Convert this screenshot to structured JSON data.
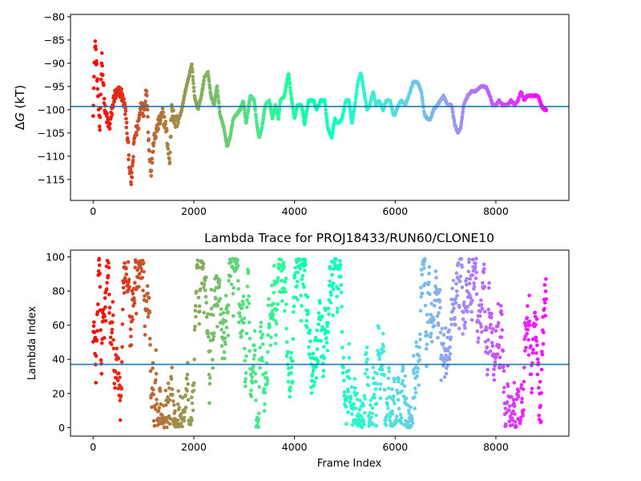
{
  "chart_data": [
    {
      "type": "scatter",
      "title": "",
      "ylabel_prefix": "Δ",
      "ylabel_var": "G",
      "ylabel_suffix": " (kT)",
      "xlabel": "",
      "xlim": [
        -450,
        9450
      ],
      "ylim": [
        -119.5,
        -79.5
      ],
      "xticks": [
        0,
        2000,
        4000,
        6000,
        8000
      ],
      "yticks": [
        -115,
        -110,
        -105,
        -100,
        -95,
        -90,
        -85,
        -80
      ],
      "hline": -99.3,
      "hline_color": "#1f77b4",
      "colormap": "rainbow (red at frame 0 to violet at frame 9000)",
      "series": [
        {
          "frame_range": [
            0,
            9000
          ],
          "trace_knots": [
            [
              0,
              -100
            ],
            [
              40,
              -85
            ],
            [
              80,
              -93
            ],
            [
              130,
              -105
            ],
            [
              170,
              -88
            ],
            [
              230,
              -100
            ],
            [
              320,
              -104
            ],
            [
              420,
              -97
            ],
            [
              550,
              -96
            ],
            [
              640,
              -100
            ],
            [
              720,
              -112
            ],
            [
              760,
              -116
            ],
            [
              820,
              -106
            ],
            [
              900,
              -103
            ],
            [
              960,
              -98
            ],
            [
              1000,
              -101
            ],
            [
              1060,
              -95
            ],
            [
              1100,
              -106
            ],
            [
              1150,
              -114
            ],
            [
              1200,
              -107
            ],
            [
              1300,
              -103
            ],
            [
              1380,
              -101
            ],
            [
              1450,
              -104
            ],
            [
              1520,
              -112
            ],
            [
              1560,
              -99
            ],
            [
              1620,
              -103
            ],
            [
              1700,
              -102
            ],
            [
              1760,
              -100
            ],
            [
              1830,
              -96
            ],
            [
              1900,
              -93
            ],
            [
              1960,
              -90
            ],
            [
              2010,
              -97
            ],
            [
              2080,
              -100
            ],
            [
              2150,
              -97
            ],
            [
              2210,
              -93
            ],
            [
              2280,
              -92
            ],
            [
              2340,
              -97
            ],
            [
              2400,
              -99
            ],
            [
              2460,
              -95
            ],
            [
              2520,
              -101
            ],
            [
              2600,
              -104
            ],
            [
              2660,
              -108
            ],
            [
              2720,
              -106
            ],
            [
              2780,
              -102
            ],
            [
              2850,
              -101
            ],
            [
              2920,
              -100
            ],
            [
              2980,
              -98
            ],
            [
              3040,
              -103
            ],
            [
              3120,
              -97
            ],
            [
              3200,
              -98
            ],
            [
              3260,
              -104
            ],
            [
              3300,
              -106
            ],
            [
              3350,
              -104
            ],
            [
              3420,
              -99
            ],
            [
              3500,
              -98
            ],
            [
              3560,
              -102
            ],
            [
              3620,
              -99
            ],
            [
              3680,
              -102
            ],
            [
              3720,
              -98
            ],
            [
              3800,
              -97
            ],
            [
              3880,
              -92
            ],
            [
              3920,
              -96
            ],
            [
              4000,
              -102
            ],
            [
              4060,
              -99
            ],
            [
              4140,
              -99
            ],
            [
              4200,
              -103
            ],
            [
              4280,
              -98
            ],
            [
              4380,
              -98
            ],
            [
              4440,
              -100
            ],
            [
              4520,
              -98
            ],
            [
              4600,
              -98
            ],
            [
              4660,
              -104
            ],
            [
              4740,
              -106
            ],
            [
              4800,
              -102
            ],
            [
              4860,
              -103
            ],
            [
              4940,
              -102
            ],
            [
              5020,
              -98
            ],
            [
              5080,
              -98
            ],
            [
              5140,
              -103
            ],
            [
              5200,
              -99
            ],
            [
              5260,
              -94
            ],
            [
              5320,
              -92
            ],
            [
              5380,
              -96
            ],
            [
              5440,
              -100
            ],
            [
              5500,
              -99
            ],
            [
              5560,
              -96
            ],
            [
              5620,
              -99
            ],
            [
              5680,
              -98
            ],
            [
              5760,
              -100
            ],
            [
              5820,
              -98
            ],
            [
              5900,
              -98
            ],
            [
              5960,
              -101
            ],
            [
              6000,
              -101
            ],
            [
              6060,
              -99
            ],
            [
              6120,
              -98
            ],
            [
              6200,
              -99
            ],
            [
              6300,
              -96
            ],
            [
              6360,
              -94
            ],
            [
              6440,
              -94
            ],
            [
              6520,
              -96
            ],
            [
              6580,
              -101
            ],
            [
              6640,
              -102
            ],
            [
              6700,
              -102
            ],
            [
              6760,
              -100
            ],
            [
              6840,
              -99
            ],
            [
              6900,
              -98
            ],
            [
              6960,
              -97
            ],
            [
              7040,
              -99
            ],
            [
              7120,
              -99
            ],
            [
              7180,
              -103
            ],
            [
              7240,
              -105
            ],
            [
              7300,
              -104
            ],
            [
              7360,
              -99
            ],
            [
              7440,
              -97
            ],
            [
              7520,
              -96
            ],
            [
              7600,
              -96
            ],
            [
              7700,
              -95
            ],
            [
              7800,
              -95
            ],
            [
              7880,
              -97
            ],
            [
              7940,
              -99
            ],
            [
              8000,
              -99
            ],
            [
              8060,
              -98
            ],
            [
              8140,
              -99
            ],
            [
              8220,
              -99
            ],
            [
              8300,
              -98
            ],
            [
              8380,
              -99
            ],
            [
              8440,
              -98
            ],
            [
              8500,
              -96
            ],
            [
              8560,
              -98
            ],
            [
              8620,
              -97
            ],
            [
              8700,
              -97
            ],
            [
              8780,
              -97
            ],
            [
              8840,
              -97
            ],
            [
              8900,
              -99
            ],
            [
              8960,
              -100
            ],
            [
              9000,
              -100
            ]
          ]
        }
      ]
    },
    {
      "type": "scatter",
      "title": "Lambda Trace for PROJ18433/RUN60/CLONE10",
      "xlabel": "Frame Index",
      "ylabel": "Lambda Index",
      "xlim": [
        -450,
        9450
      ],
      "ylim": [
        -5,
        104
      ],
      "xticks": [
        0,
        2000,
        4000,
        6000,
        8000
      ],
      "yticks": [
        0,
        20,
        40,
        60,
        80,
        100
      ],
      "hline": 37,
      "hline_color": "#1f77b4",
      "colormap": "rainbow (red at frame 0 to violet at frame 9000)",
      "series": [
        {
          "frame_range": [
            0,
            9000
          ],
          "value_range": [
            0,
            99
          ],
          "distribution": "vertical random-walk bursts spanning 0 to 99 across the full frame range"
        }
      ]
    }
  ]
}
